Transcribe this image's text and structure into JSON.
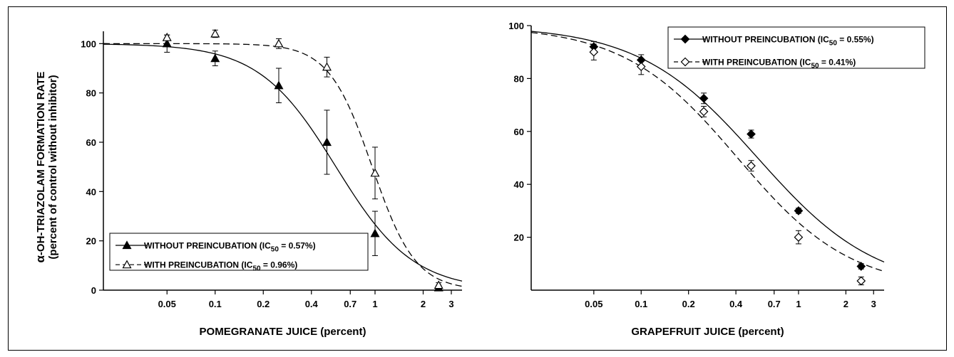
{
  "figure": {
    "ylabel_line1_symbol": "α",
    "ylabel_line1_text": "-OH-TRIAZOLAM FORMATION RATE",
    "ylabel_line2": "(percent of control without inhibitor)"
  },
  "chart_data": [
    {
      "type": "scatter",
      "xscale": "log",
      "xlabel": "POMEGRANATE JUICE (percent)",
      "xticks": [
        0.05,
        0.1,
        0.2,
        0.4,
        0.7,
        1,
        2,
        3
      ],
      "xtick_labels": [
        "0.05",
        "0.1",
        "0.2",
        "0.4",
        "0.7",
        "1",
        "2",
        "3"
      ],
      "yticks": [
        0,
        20,
        40,
        60,
        80,
        100
      ],
      "ytick_labels": [
        "0",
        "20",
        "40",
        "60",
        "80",
        "100"
      ],
      "xlim": [
        0.02,
        3.5
      ],
      "ylim": [
        0,
        105
      ],
      "legend_position": "bottom-left",
      "series": [
        {
          "legend_main": "WITHOUT PREINCUBATION (IC",
          "legend_sub": "50",
          "legend_tail": " = 0.57%)",
          "marker": "filled-triangle",
          "line": "solid",
          "ic50": 0.57,
          "hill": 1.8,
          "x": [
            0.05,
            0.1,
            0.25,
            0.5,
            1,
            2.5
          ],
          "y": [
            100,
            94,
            83,
            60,
            23,
            1
          ],
          "err": [
            3.5,
            3,
            7,
            13,
            9,
            1
          ]
        },
        {
          "legend_main": "WITH PREINCUBATION (IC",
          "legend_sub": "50",
          "legend_tail": " = 0.96%)",
          "marker": "open-triangle",
          "line": "dashed",
          "ic50": 0.96,
          "hill": 3.2,
          "x": [
            0.05,
            0.1,
            0.25,
            0.5,
            1,
            2.5
          ],
          "y": [
            102.5,
            104,
            100,
            90.5,
            47.5,
            2
          ],
          "err": [
            1,
            1.5,
            2,
            4,
            10.5,
            1
          ]
        }
      ]
    },
    {
      "type": "scatter",
      "xscale": "log",
      "xlabel": "GRAPEFRUIT JUICE (percent)",
      "xticks": [
        0.05,
        0.1,
        0.2,
        0.4,
        0.7,
        1,
        2,
        3
      ],
      "xtick_labels": [
        "0.05",
        "0.1",
        "0.2",
        "0.4",
        "0.7",
        "1",
        "2",
        "3"
      ],
      "yticks": [
        20,
        40,
        60,
        80,
        100
      ],
      "ytick_labels": [
        "20",
        "40",
        "60",
        "80",
        "100"
      ],
      "xlim": [
        0.02,
        3.5
      ],
      "ylim": [
        0,
        100
      ],
      "legend_position": "top-right",
      "series": [
        {
          "legend_main": "WITHOUT PREINCUBATION (IC",
          "legend_sub": "50",
          "legend_tail": " = 0.55%)",
          "marker": "filled-diamond",
          "line": "solid",
          "ic50": 0.55,
          "hill": 1.15,
          "x": [
            0.05,
            0.1,
            0.25,
            0.5,
            1,
            2.5
          ],
          "y": [
            92,
            87,
            72.5,
            59,
            30,
            9
          ],
          "err": [
            2,
            2,
            2,
            1.5,
            1,
            1
          ]
        },
        {
          "legend_main": "WITH PREINCUBATION (IC",
          "legend_sub": "50",
          "legend_tail": " = 0.41%)",
          "marker": "open-diamond",
          "line": "dashed",
          "ic50": 0.41,
          "hill": 1.2,
          "x": [
            0.05,
            0.1,
            0.25,
            0.5,
            1,
            2.5
          ],
          "y": [
            90,
            84.5,
            67.5,
            47,
            20,
            3.5
          ],
          "err": [
            3,
            3,
            2,
            2,
            2.5,
            1.5
          ]
        }
      ]
    }
  ]
}
